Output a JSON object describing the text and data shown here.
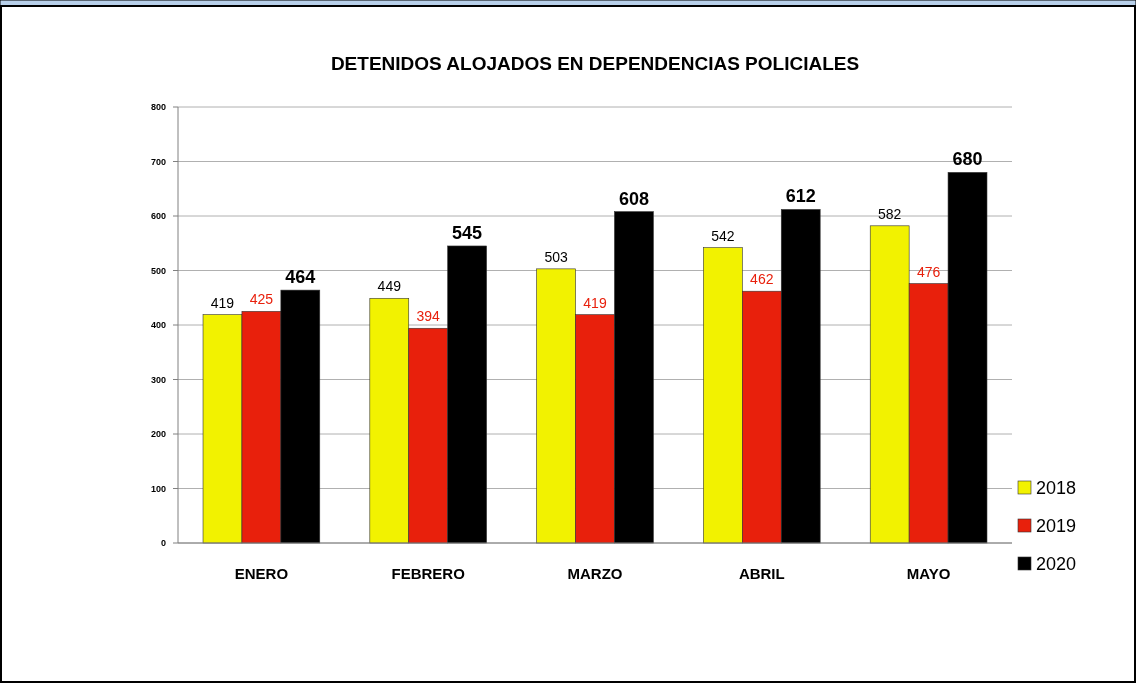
{
  "chart_data": {
    "type": "bar",
    "title": "DETENIDOS ALOJADOS EN DEPENDENCIAS POLICIALES",
    "categories": [
      "ENERO",
      "FEBRERO",
      "MARZO",
      "ABRIL",
      "MAYO"
    ],
    "series": [
      {
        "name": "2018",
        "color": "#f2f200",
        "values": [
          419,
          449,
          503,
          542,
          582
        ]
      },
      {
        "name": "2019",
        "color": "#e8200c",
        "values": [
          425,
          394,
          419,
          462,
          476
        ]
      },
      {
        "name": "2020",
        "color": "#000000",
        "values": [
          464,
          545,
          608,
          612,
          680
        ]
      }
    ],
    "ylim": [
      0,
      800
    ],
    "yticks": [
      0,
      100,
      200,
      300,
      400,
      500,
      600,
      700,
      800
    ],
    "grid": "y",
    "legend": "right",
    "data_labels": true
  }
}
